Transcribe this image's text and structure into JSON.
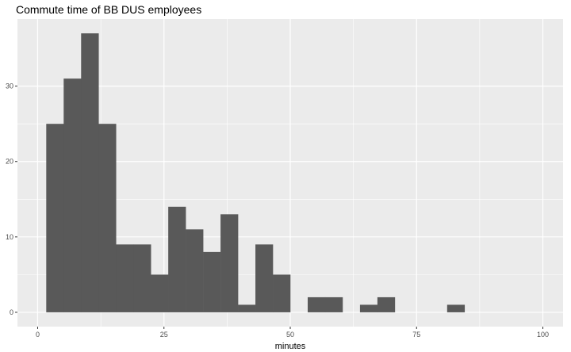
{
  "chart_data": {
    "type": "bar",
    "title": "Commute time of BB DUS employees",
    "xlabel": "minutes",
    "ylabel": "",
    "xlim": [
      -4,
      104
    ],
    "ylim": [
      -1.9,
      38.9
    ],
    "x_ticks": [
      0,
      25,
      50,
      75,
      100
    ],
    "y_ticks": [
      0,
      10,
      20,
      30
    ],
    "grid": true,
    "bin_width": 3.45,
    "bins": [
      {
        "x0": 1.7,
        "count": 25
      },
      {
        "x0": 5.15,
        "count": 31
      },
      {
        "x0": 8.6,
        "count": 37
      },
      {
        "x0": 12.05,
        "count": 25
      },
      {
        "x0": 15.5,
        "count": 9
      },
      {
        "x0": 18.95,
        "count": 9
      },
      {
        "x0": 22.4,
        "count": 5
      },
      {
        "x0": 25.85,
        "count": 14
      },
      {
        "x0": 29.3,
        "count": 11
      },
      {
        "x0": 32.75,
        "count": 8
      },
      {
        "x0": 36.2,
        "count": 13
      },
      {
        "x0": 39.65,
        "count": 1
      },
      {
        "x0": 43.1,
        "count": 9
      },
      {
        "x0": 46.55,
        "count": 5
      },
      {
        "x0": 50.0,
        "count": 0
      },
      {
        "x0": 53.45,
        "count": 2
      },
      {
        "x0": 56.9,
        "count": 2
      },
      {
        "x0": 60.35,
        "count": 0
      },
      {
        "x0": 63.8,
        "count": 1
      },
      {
        "x0": 67.25,
        "count": 2
      },
      {
        "x0": 70.7,
        "count": 0
      },
      {
        "x0": 74.15,
        "count": 0
      },
      {
        "x0": 77.6,
        "count": 0
      },
      {
        "x0": 81.05,
        "count": 1
      }
    ],
    "colors": {
      "panel_background": "#EBEBEB",
      "grid_major": "#FFFFFF",
      "bar_fill": "#595959",
      "text": "#000000",
      "tick_text": "#4D4D4D"
    }
  }
}
